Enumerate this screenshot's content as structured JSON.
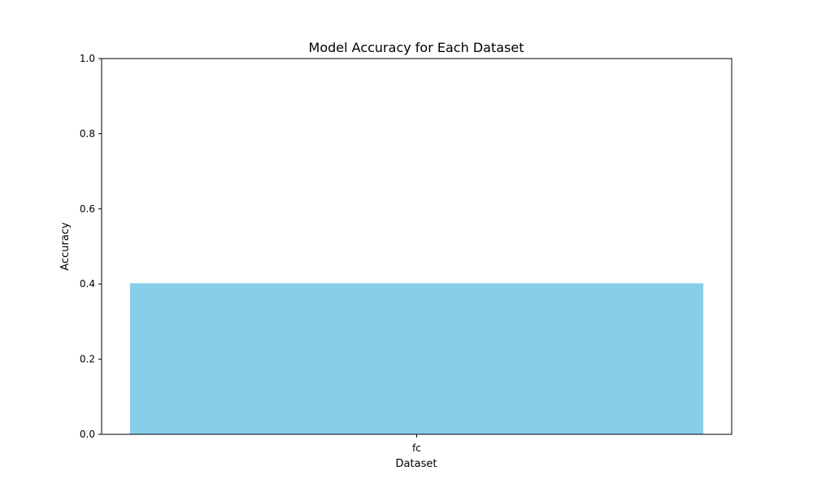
{
  "chart_data": {
    "type": "bar",
    "title": "Model Accuracy for Each Dataset",
    "xlabel": "Dataset",
    "ylabel": "Accuracy",
    "categories": [
      "fc"
    ],
    "values": [
      0.402
    ],
    "ylim": [
      0,
      1
    ],
    "yticks": [
      0.0,
      0.2,
      0.4,
      0.6,
      0.8,
      1.0
    ],
    "ytick_labels": [
      "0.0",
      "0.2",
      "0.4",
      "0.6",
      "0.8",
      "1.0"
    ],
    "grid": false,
    "legend": "none",
    "colors": {
      "bar": "#87ceeb",
      "axis": "#000000",
      "background": "#ffffff"
    }
  }
}
